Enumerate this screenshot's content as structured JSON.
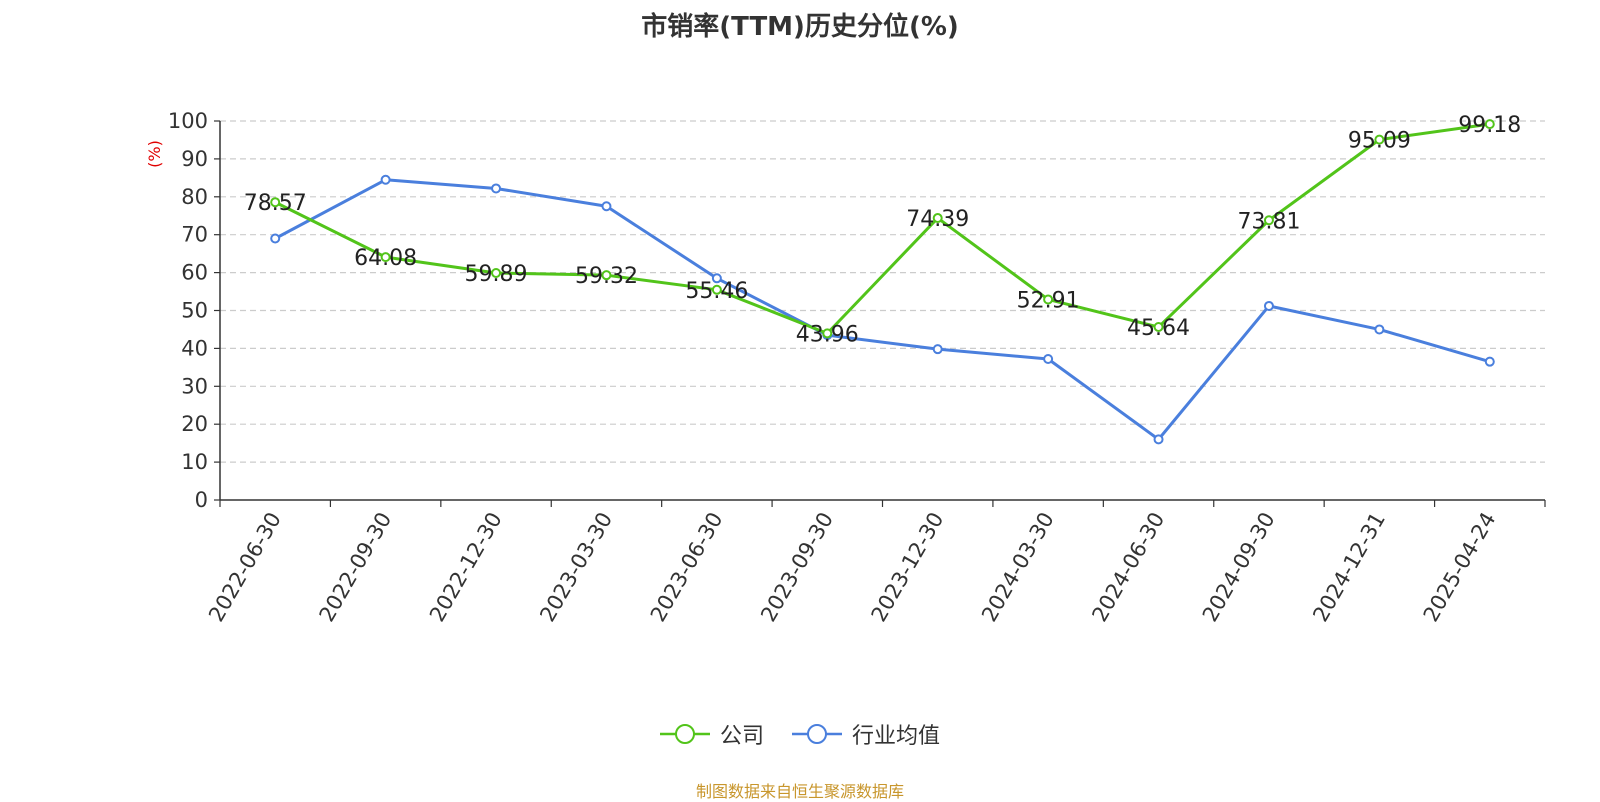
{
  "chart_data": {
    "type": "line",
    "title": "市销率(TTM)历史分位(%)",
    "ylabel": "(%)",
    "ylim": [
      0,
      100
    ],
    "yticks": [
      0,
      10,
      20,
      30,
      40,
      50,
      60,
      70,
      80,
      90,
      100
    ],
    "categories": [
      "2022-06-30",
      "2022-09-30",
      "2022-12-30",
      "2023-03-30",
      "2023-06-30",
      "2023-09-30",
      "2023-12-30",
      "2024-03-30",
      "2024-06-30",
      "2024-09-30",
      "2024-12-31",
      "2025-04-24"
    ],
    "series": [
      {
        "name": "公司",
        "color": "#52c41a",
        "values": [
          78.57,
          64.08,
          59.89,
          59.32,
          55.46,
          43.96,
          74.39,
          52.91,
          45.64,
          73.81,
          95.09,
          99.18
        ],
        "labels": [
          "78.57",
          "64.08",
          "59.89",
          "59.32",
          "55.46",
          "43.96",
          "74.39",
          "52.91",
          "45.64",
          "73.81",
          "95.09",
          "99.18"
        ]
      },
      {
        "name": "行业均值",
        "color": "#4a7fdd",
        "values": [
          69,
          84.5,
          82.2,
          77.5,
          58.5,
          43.5,
          39.8,
          37.2,
          16,
          51.2,
          45,
          36.5
        ]
      }
    ],
    "grid": true,
    "legend_position": "bottom-center"
  },
  "source": "制图数据来自恒生聚源数据库"
}
